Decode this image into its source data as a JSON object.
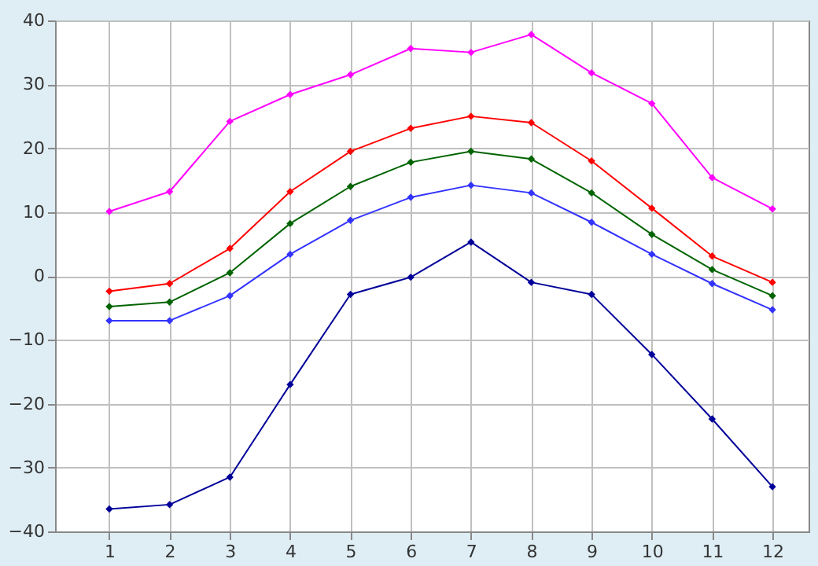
{
  "chart_data": {
    "type": "line",
    "x": [
      1,
      2,
      3,
      4,
      5,
      6,
      7,
      8,
      9,
      10,
      11,
      12
    ],
    "series": [
      {
        "color": "#ff00ff",
        "values": [
          10.1,
          13.2,
          24.2,
          28.4,
          31.5,
          35.6,
          35.0,
          37.8,
          31.8,
          27.0,
          15.4,
          10.5
        ]
      },
      {
        "color": "#ff0000",
        "values": [
          -2.4,
          -1.2,
          4.3,
          13.2,
          19.5,
          23.1,
          25.0,
          24.0,
          18.0,
          10.6,
          3.1,
          -1.0
        ]
      },
      {
        "color": "#006400",
        "values": [
          -4.8,
          -4.1,
          0.5,
          8.2,
          14.0,
          17.8,
          19.5,
          18.3,
          13.0,
          6.5,
          1.0,
          -3.1
        ]
      },
      {
        "color": "#3333ff",
        "values": [
          -7.0,
          -7.0,
          -3.1,
          3.4,
          8.7,
          12.3,
          14.2,
          13.0,
          8.4,
          3.4,
          -1.2,
          -5.3
        ]
      },
      {
        "color": "#000099",
        "values": [
          -36.5,
          -35.8,
          -31.5,
          -17.0,
          -2.9,
          -0.2,
          5.3,
          -1.0,
          -2.9,
          -12.3,
          -22.4,
          -33.0
        ]
      }
    ],
    "xlim": [
      0.1,
      12.6
    ],
    "xticks": [
      1,
      2,
      3,
      4,
      5,
      6,
      7,
      8,
      9,
      10,
      11,
      12
    ],
    "ylim": [
      -40,
      40
    ],
    "yticks": [
      -40,
      -30,
      -20,
      -10,
      0,
      10,
      20,
      30,
      40
    ],
    "grid": true,
    "legend": false,
    "marker": "diamond",
    "line_style": "solid"
  }
}
